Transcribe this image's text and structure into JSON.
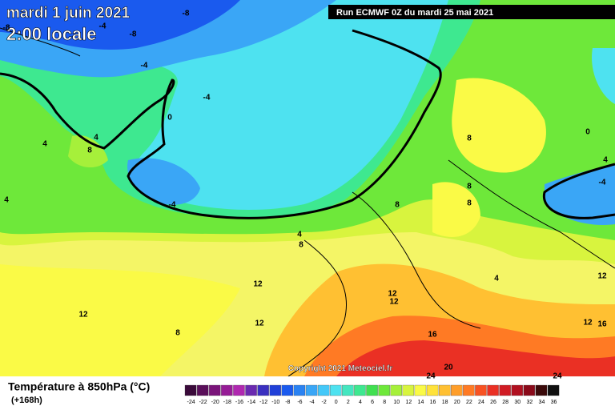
{
  "header": {
    "date": "mardi 1 juin 2021",
    "time": "2:00 locale",
    "run": "Run ECMWF 0Z du mardi 25 mai 2021"
  },
  "copyright": "Copyright 2021 Meteociel.fr",
  "legend": {
    "title": "Température à 850hPa (°C)",
    "subtitle": "(+168h)",
    "scale": [
      {
        "label": "-24",
        "color": "#3a0a3a"
      },
      {
        "label": "-22",
        "color": "#5a0f5a"
      },
      {
        "label": "-20",
        "color": "#7a147a"
      },
      {
        "label": "-18",
        "color": "#961c96"
      },
      {
        "label": "-16",
        "color": "#b028b0"
      },
      {
        "label": "-14",
        "color": "#6a2ab0"
      },
      {
        "label": "-12",
        "color": "#3a30c0"
      },
      {
        "label": "-10",
        "color": "#2040d8"
      },
      {
        "label": "-8",
        "color": "#1a5aee"
      },
      {
        "label": "-6",
        "color": "#2a82f2"
      },
      {
        "label": "-4",
        "color": "#3aa6f6"
      },
      {
        "label": "-2",
        "color": "#44c8f8"
      },
      {
        "label": "0",
        "color": "#4ee2f0"
      },
      {
        "label": "2",
        "color": "#44e6c0"
      },
      {
        "label": "4",
        "color": "#3ee890"
      },
      {
        "label": "6",
        "color": "#40e050"
      },
      {
        "label": "8",
        "color": "#6ee83a"
      },
      {
        "label": "10",
        "color": "#a6f03a"
      },
      {
        "label": "12",
        "color": "#d8f43e"
      },
      {
        "label": "14",
        "color": "#fafa46"
      },
      {
        "label": "16",
        "color": "#ffe23a"
      },
      {
        "label": "18",
        "color": "#ffc032"
      },
      {
        "label": "20",
        "color": "#ff9e2a"
      },
      {
        "label": "22",
        "color": "#ff7a24"
      },
      {
        "label": "24",
        "color": "#f85222"
      },
      {
        "label": "26",
        "color": "#ea3024"
      },
      {
        "label": "28",
        "color": "#d01c24"
      },
      {
        "label": "30",
        "color": "#b01020"
      },
      {
        "label": "32",
        "color": "#8a0a1a"
      },
      {
        "label": "34",
        "color": "#3a0a0a"
      },
      {
        "label": "36",
        "color": "#101010"
      }
    ]
  },
  "contour_labels": [
    "-8",
    "-8",
    "-4",
    "-8",
    "-4",
    "-4",
    "0",
    "4",
    "8",
    "4",
    "4",
    "-4",
    "4",
    "8",
    "8",
    "8",
    "8",
    "8",
    "0",
    "4",
    "-4",
    "12",
    "12",
    "12",
    "8",
    "12",
    "12",
    "4",
    "12",
    "12",
    "16",
    "16",
    "20",
    "24",
    "24"
  ]
}
